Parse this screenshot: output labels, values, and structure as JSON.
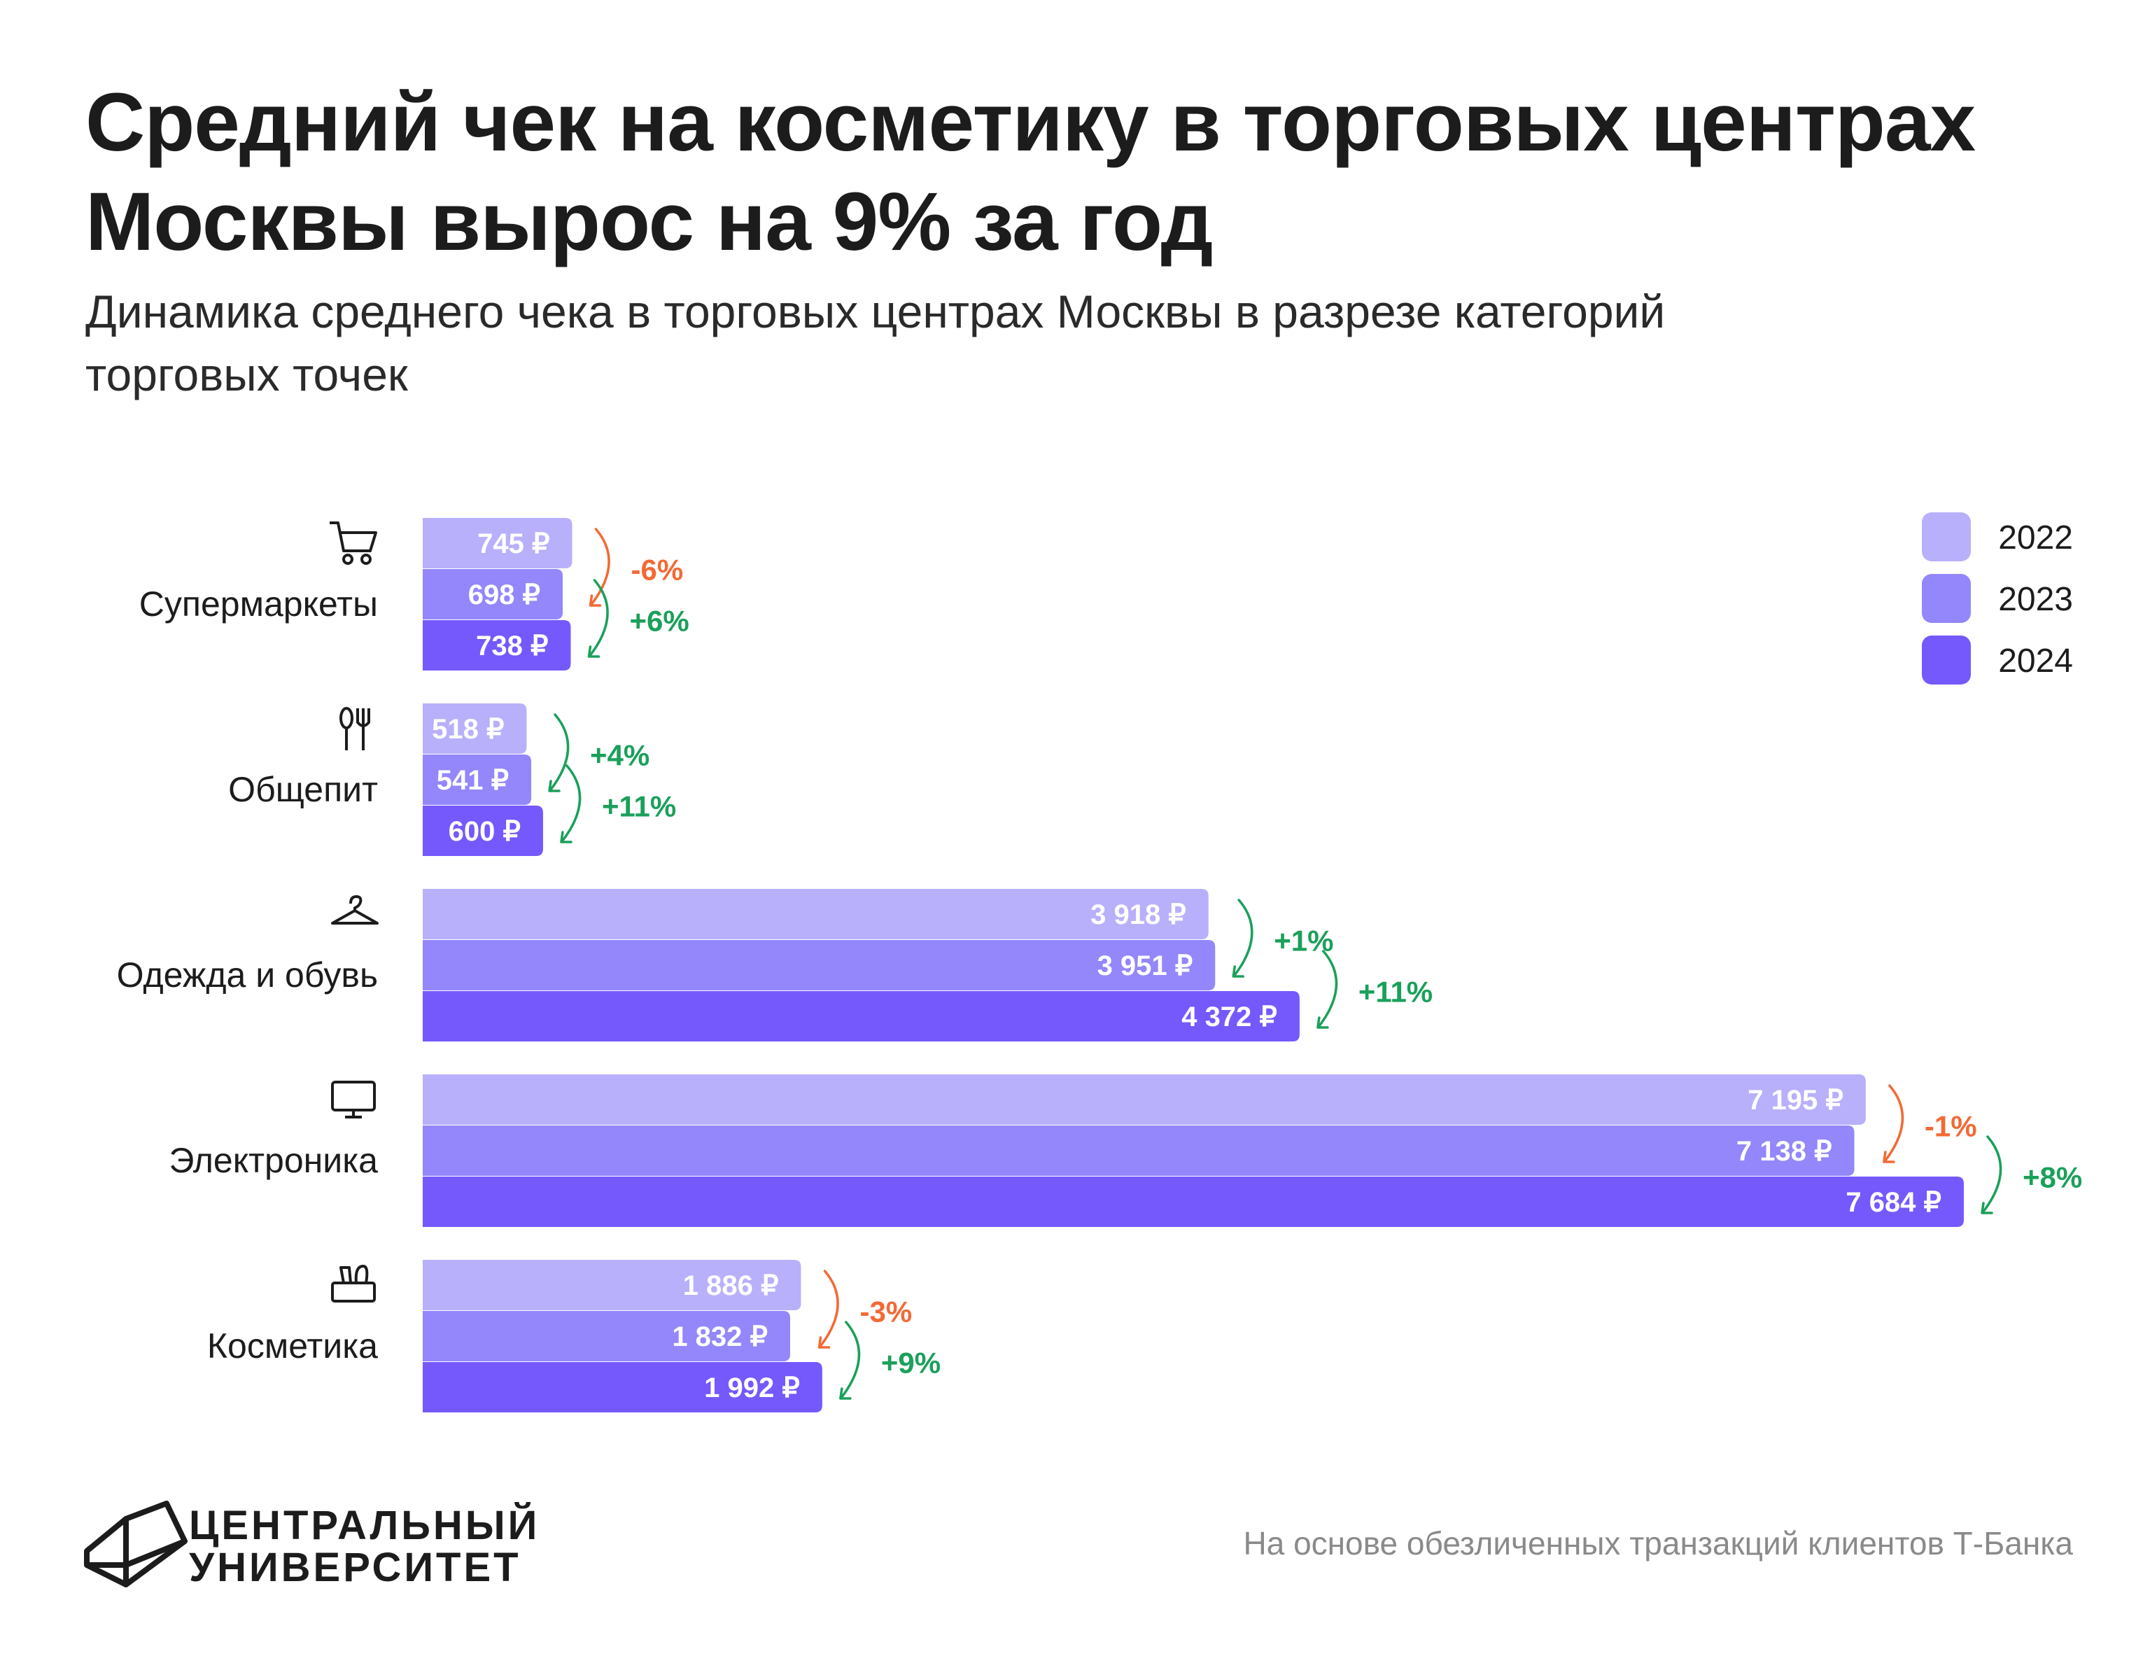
{
  "header": {
    "title": "Средний чек на косметику в торговых центрах Москвы вырос на 9% за год",
    "subtitle": "Динамика среднего чека в торговых центрах Москвы в разрезе категорий торговых точек"
  },
  "footer": {
    "logo_line1": "ЦЕНТРАЛЬНЫЙ",
    "logo_line2": "УНИВЕРСИТЕТ",
    "source": "На основе обезличенных транзакций клиентов Т-Банка"
  },
  "colors": {
    "2022": "#b8b0fb",
    "2023": "#9387fb",
    "2024": "#7559fd",
    "increase": "#1aa05a",
    "decrease": "#f26a35"
  },
  "chart_data": {
    "type": "bar",
    "orientation": "horizontal",
    "title": "Средний чек на косметику в торговых центрах Москвы вырос на 9% за год",
    "subtitle": "Динамика среднего чека в торговых центрах Москвы в разрезе категорий торговых точек",
    "unit": "₽",
    "legend_position": "top-right",
    "categories": [
      {
        "name": "Супермаркеты",
        "icon": "shopping-cart-icon"
      },
      {
        "name": "Общепит",
        "icon": "fork-spoon-icon"
      },
      {
        "name": "Одежда и обувь",
        "icon": "hanger-icon"
      },
      {
        "name": "Электроника",
        "icon": "monitor-icon"
      },
      {
        "name": "Косметика",
        "icon": "cosmetics-icon"
      }
    ],
    "series": [
      {
        "name": "2022",
        "values": [
          745,
          518,
          3918,
          7195,
          1886
        ],
        "labels": [
          "745 ₽",
          "518 ₽",
          "3 918 ₽",
          "7 195 ₽",
          "1 886 ₽"
        ]
      },
      {
        "name": "2023",
        "values": [
          698,
          541,
          3951,
          7138,
          1832
        ],
        "labels": [
          "698 ₽",
          "541 ₽",
          "3 951 ₽",
          "7 138 ₽",
          "1 832 ₽"
        ]
      },
      {
        "name": "2024",
        "values": [
          738,
          600,
          4372,
          7684,
          1992
        ],
        "labels": [
          "738 ₽",
          "600 ₽",
          "4 372 ₽",
          "7 684 ₽",
          "1 992 ₽"
        ]
      }
    ],
    "changes": [
      {
        "from": "2022",
        "to": "2023",
        "values": [
          "-6%",
          "+4%",
          "+1%",
          "-1%",
          "-3%"
        ]
      },
      {
        "from": "2023",
        "to": "2024",
        "values": [
          "+6%",
          "+11%",
          "+11%",
          "+8%",
          "+9%"
        ]
      }
    ],
    "xlim": [
      0,
      7684
    ]
  }
}
